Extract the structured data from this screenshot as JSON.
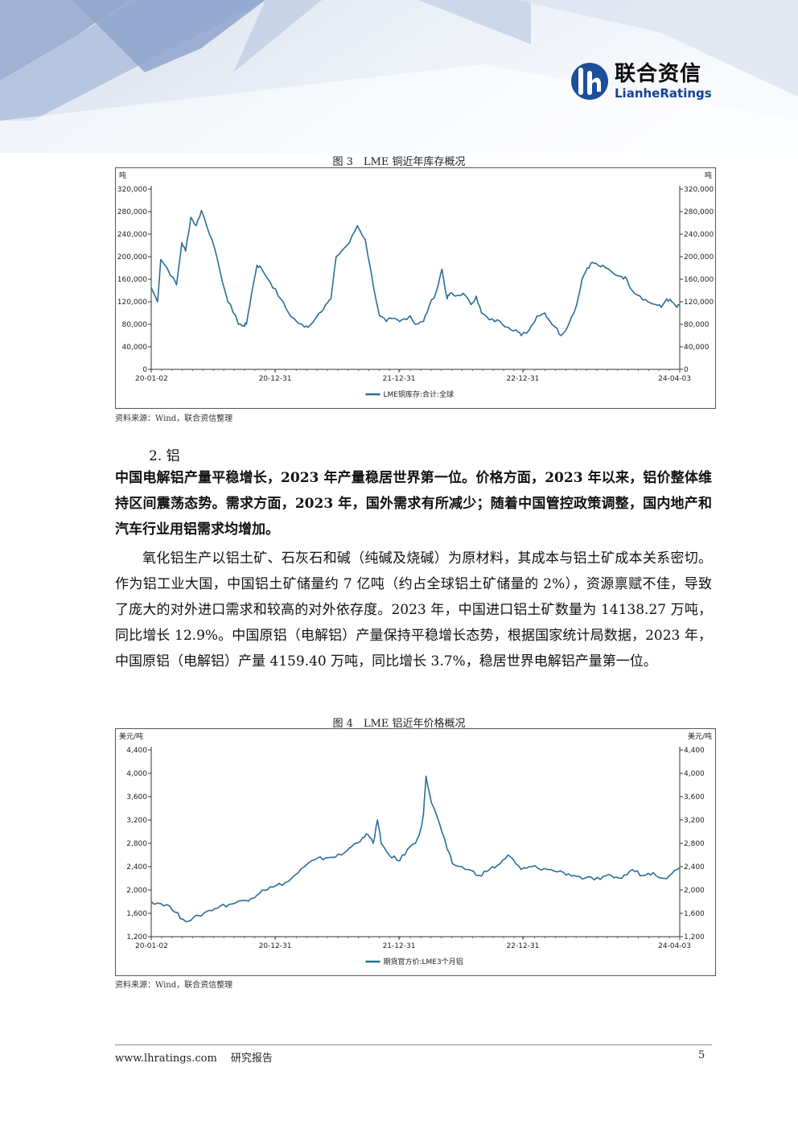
{
  "brand": {
    "name_cn": "联合资信",
    "name_en": "LianheRatings",
    "accent_color": "#1b4f99"
  },
  "figure3": {
    "caption": "图 3　LME 铜近年库存概况",
    "source": "资料来源：Wind，联合资信整理"
  },
  "figure4": {
    "caption": "图 4　LME 铝近年价格概况",
    "source": "资料来源：Wind，联合资信整理"
  },
  "section": {
    "heading": "2. 铝",
    "bold_paragraph": "中国电解铝产量平稳增长，2023 年产量稳居世界第一位。价格方面，2023 年以来，铝价整体维持区间震荡态势。需求方面，2023 年，国外需求有所减少；随着中国管控政策调整，国内地产和汽车行业用铝需求均增加。",
    "body_paragraph": "氧化铝生产以铝土矿、石灰石和碱（纯碱及烧碱）为原材料，其成本与铝土矿成本关系密切。作为铝工业大国，中国铝土矿储量约 7 亿吨（约占全球铝土矿储量的 2%），资源禀赋不佳，导致了庞大的对外进口需求和较高的对外依存度。2023 年，中国进口铝土矿数量为 14138.27 万吨，同比增长 12.9%。中国原铝（电解铝）产量保持平稳增长态势，根据国家统计局数据，2023 年，中国原铝（电解铝）产量 4159.40 万吨，同比增长 3.7%，稳居世界电解铝产量第一位。"
  },
  "footer": {
    "url": "www.lhratings.com　 研究报告",
    "page": "5"
  },
  "chart_data": [
    {
      "type": "line",
      "unit_left": "吨",
      "unit_right": "吨",
      "ylim": [
        0,
        320000
      ],
      "yticks": [
        0,
        40000,
        80000,
        120000,
        160000,
        200000,
        240000,
        280000,
        320000
      ],
      "ytick_labels": [
        "0",
        "40,000",
        "80,000",
        "120,000",
        "160,000",
        "200,000",
        "240,000",
        "280,000",
        "320,000"
      ],
      "xlim": [
        "2020-01-02",
        "2024-04-03"
      ],
      "xtick_labels": [
        "20-01-02",
        "20-12-31",
        "21-12-31",
        "22-12-31",
        "24-04-03"
      ],
      "xtick_positions": [
        0.0,
        0.2344,
        0.4688,
        0.7031,
        1.0
      ],
      "line_color": "#2a6e98",
      "series": [
        {
          "name": "LME铜库存:合计:全球",
          "x": [
            0.0,
            0.012,
            0.018,
            0.03,
            0.048,
            0.058,
            0.065,
            0.075,
            0.085,
            0.095,
            0.1,
            0.115,
            0.13,
            0.145,
            0.16,
            0.165,
            0.175,
            0.18,
            0.19,
            0.2,
            0.208,
            0.225,
            0.245,
            0.26,
            0.275,
            0.29,
            0.3,
            0.318,
            0.33,
            0.34,
            0.35,
            0.365,
            0.375,
            0.39,
            0.405,
            0.42,
            0.432,
            0.445,
            0.455,
            0.47,
            0.48,
            0.49,
            0.5,
            0.515,
            0.525,
            0.54,
            0.55,
            0.56,
            0.565,
            0.575,
            0.59,
            0.605,
            0.615,
            0.625,
            0.64,
            0.66,
            0.675,
            0.69,
            0.7,
            0.715,
            0.73,
            0.745,
            0.755,
            0.765,
            0.775,
            0.79,
            0.805,
            0.815,
            0.825,
            0.835,
            0.845,
            0.86,
            0.875,
            0.89,
            0.9,
            0.91,
            0.925,
            0.94,
            0.955,
            0.965,
            0.975,
            0.985,
            0.995,
            1.0
          ],
          "y": [
            145000,
            120000,
            195000,
            180000,
            150000,
            225000,
            210000,
            270000,
            255000,
            282000,
            270000,
            230000,
            175000,
            120000,
            95000,
            80000,
            78000,
            80000,
            135000,
            185000,
            180000,
            155000,
            125000,
            100000,
            85000,
            75000,
            78000,
            100000,
            115000,
            125000,
            200000,
            215000,
            225000,
            255000,
            230000,
            150000,
            95000,
            85000,
            90000,
            85000,
            90000,
            95000,
            80000,
            85000,
            110000,
            140000,
            178000,
            125000,
            135000,
            130000,
            135000,
            115000,
            130000,
            100000,
            88000,
            85000,
            75000,
            70000,
            60000,
            70000,
            95000,
            100000,
            85000,
            75000,
            60000,
            80000,
            115000,
            160000,
            180000,
            190000,
            185000,
            180000,
            170000,
            165000,
            160000,
            140000,
            130000,
            120000,
            115000,
            110000,
            125000,
            120000,
            110000,
            115000
          ]
        }
      ]
    },
    {
      "type": "line",
      "unit_left": "美元/吨",
      "unit_right": "美元/吨",
      "ylim": [
        1200,
        4400
      ],
      "yticks": [
        1200,
        1600,
        2000,
        2400,
        2800,
        3200,
        3600,
        4000,
        4400
      ],
      "ytick_labels": [
        "1,200",
        "1,600",
        "2,000",
        "2,400",
        "2,800",
        "3,200",
        "3,600",
        "4,000",
        "4,400"
      ],
      "xlim": [
        "2020-01-02",
        "2024-04-03"
      ],
      "xtick_labels": [
        "20-01-02",
        "20-12-31",
        "21-12-31",
        "22-12-31",
        "24-04-03"
      ],
      "xtick_positions": [
        0.0,
        0.2344,
        0.4688,
        0.7031,
        1.0
      ],
      "line_color": "#2a6e98",
      "series": [
        {
          "name": "期货官方价:LME3个月铝",
          "x": [
            0.0,
            0.03,
            0.045,
            0.06,
            0.075,
            0.09,
            0.11,
            0.13,
            0.16,
            0.19,
            0.21,
            0.23,
            0.26,
            0.29,
            0.31,
            0.33,
            0.36,
            0.38,
            0.4,
            0.41,
            0.42,
            0.428,
            0.435,
            0.45,
            0.47,
            0.485,
            0.5,
            0.51,
            0.515,
            0.52,
            0.53,
            0.545,
            0.56,
            0.57,
            0.6,
            0.62,
            0.64,
            0.66,
            0.675,
            0.69,
            0.7,
            0.72,
            0.75,
            0.78,
            0.8,
            0.82,
            0.85,
            0.87,
            0.89,
            0.91,
            0.93,
            0.95,
            0.97,
            0.985,
            1.0
          ],
          "y": [
            1800,
            1750,
            1620,
            1500,
            1480,
            1560,
            1650,
            1720,
            1780,
            1860,
            2000,
            2050,
            2150,
            2400,
            2520,
            2550,
            2600,
            2750,
            2900,
            2950,
            2800,
            3200,
            2800,
            2600,
            2500,
            2700,
            2800,
            3050,
            3300,
            3950,
            3500,
            3150,
            2700,
            2450,
            2350,
            2250,
            2350,
            2450,
            2600,
            2450,
            2350,
            2400,
            2350,
            2300,
            2250,
            2200,
            2180,
            2250,
            2200,
            2350,
            2250,
            2300,
            2200,
            2280,
            2380
          ]
        }
      ]
    }
  ]
}
